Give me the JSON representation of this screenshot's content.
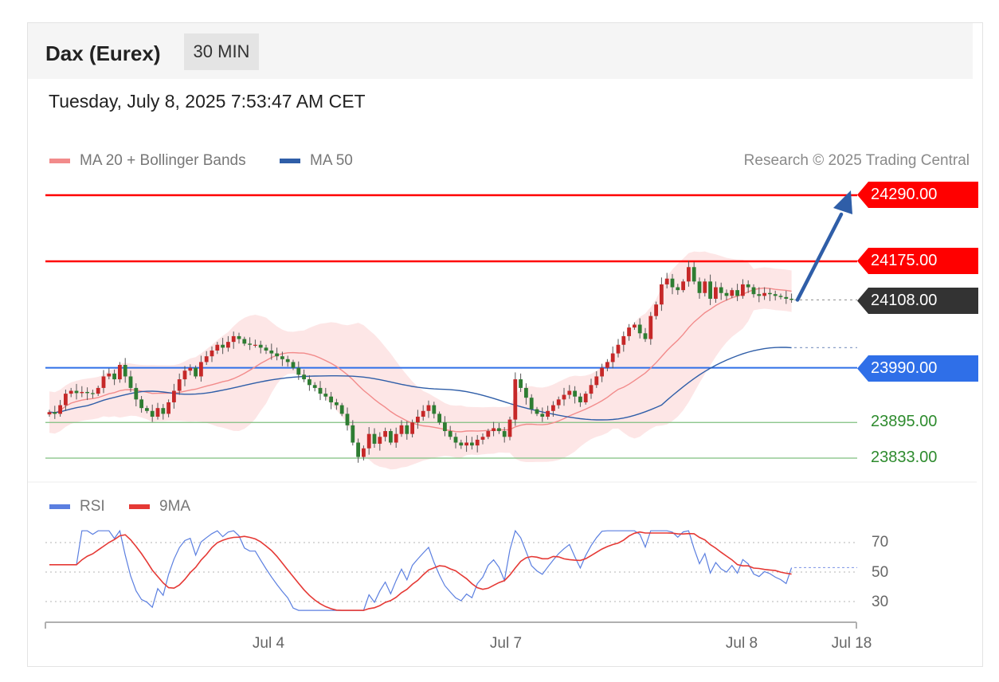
{
  "header": {
    "title": "Dax (Eurex)",
    "timeframe": "30 MIN",
    "datetime": "Tuesday, July 8, 2025 7:53:47 AM CET",
    "credit": "Research © 2025 Trading Central"
  },
  "legend_main": [
    {
      "label": "MA 20 + Bollinger Bands",
      "color": "#f28b8b"
    },
    {
      "label": "MA 50",
      "color": "#2f5ea8"
    }
  ],
  "legend_rsi": [
    {
      "label": "RSI",
      "color": "#5b7fe0"
    },
    {
      "label": "9MA",
      "color": "#e53935"
    }
  ],
  "colors": {
    "resistance": "#ff0000",
    "support": "#2e8b2e",
    "pivot": "#2f6fe8",
    "last": "#333333",
    "up_candle": "#c62828",
    "down_candle": "#2e7d32",
    "band_fill": "#fde2e2",
    "arrow": "#2f5ea8"
  },
  "chart_data": {
    "type": "candlestick",
    "timeframe": "30 MIN",
    "instrument": "Dax (Eurex)",
    "x_labels": [
      "Jul 4",
      "Jul 7",
      "Jul 8",
      "Jul 18"
    ],
    "y_range": [
      23800,
      24340
    ],
    "levels": [
      {
        "value": 24290.0,
        "label": "24290.00",
        "kind": "resistance"
      },
      {
        "value": 24175.0,
        "label": "24175.00",
        "kind": "resistance"
      },
      {
        "value": 24108.0,
        "label": "24108.00",
        "kind": "last"
      },
      {
        "value": 23990.0,
        "label": "23990.00",
        "kind": "pivot"
      },
      {
        "value": 23895.0,
        "label": "23895.00",
        "kind": "support"
      },
      {
        "value": 23833.0,
        "label": "23833.00",
        "kind": "support"
      }
    ],
    "closes": [
      23913,
      23910,
      23925,
      23945,
      23950,
      23946,
      23948,
      23946,
      23945,
      23955,
      23975,
      23980,
      23970,
      23995,
      23975,
      23955,
      23935,
      23920,
      23915,
      23905,
      23920,
      23910,
      23930,
      23950,
      23970,
      23985,
      23990,
      23975,
      24000,
      24010,
      24020,
      24030,
      24025,
      24035,
      24045,
      24040,
      24032,
      24030,
      24030,
      24025,
      24020,
      24015,
      24010,
      24005,
      24000,
      23990,
      23978,
      23970,
      23960,
      23955,
      23945,
      23940,
      23930,
      23925,
      23910,
      23890,
      23860,
      23835,
      23850,
      23875,
      23858,
      23870,
      23880,
      23860,
      23875,
      23890,
      23875,
      23895,
      23905,
      23915,
      23925,
      23910,
      23895,
      23880,
      23870,
      23860,
      23855,
      23860,
      23855,
      23865,
      23870,
      23880,
      23885,
      23880,
      23870,
      23900,
      23970,
      23955,
      23938,
      23918,
      23910,
      23905,
      23915,
      23925,
      23935,
      23943,
      23950,
      23940,
      23930,
      23945,
      23960,
      23975,
      23990,
      24000,
      24015,
      24030,
      24045,
      24060,
      24065,
      24050,
      24040,
      24080,
      24100,
      24135,
      24145,
      24130,
      24125,
      24140,
      24165,
      24140,
      24120,
      24140,
      24110,
      24130,
      24120,
      24115,
      24125,
      24115,
      24135,
      24130,
      24118,
      24115,
      24120,
      24118,
      24115,
      24113,
      24110,
      24108
    ],
    "ma50_end": 24025,
    "rsi": {
      "levels": [
        70,
        50,
        30
      ],
      "rsi_last": 53,
      "ma9_last": 56
    },
    "forecast_target": 24290.0
  }
}
